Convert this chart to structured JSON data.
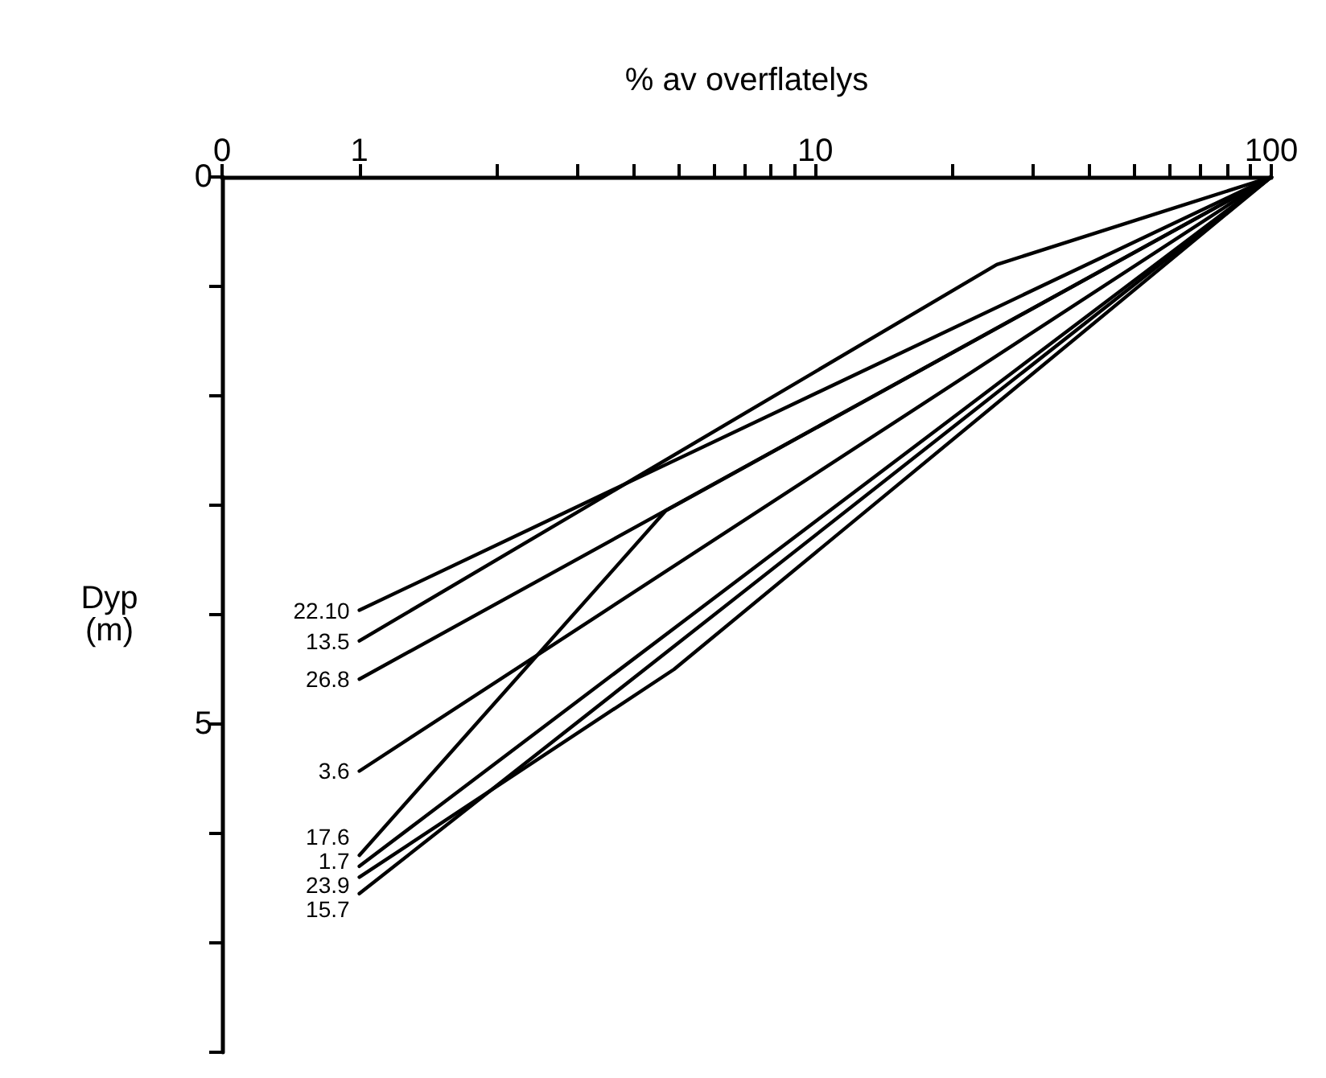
{
  "chart_data": {
    "type": "line",
    "xlabel": "% av overflatelys",
    "ylabel": "Dyp (m)",
    "log": "x",
    "xlim": [
      0.5,
      100
    ],
    "ylim": [
      8,
      0
    ],
    "xticks": [
      {
        "value": 0.5,
        "label": "0"
      },
      1,
      {
        "value": 2,
        "label": null
      },
      {
        "value": 3,
        "label": null
      },
      {
        "value": 4,
        "label": null
      },
      {
        "value": 5,
        "label": null
      },
      {
        "value": 6,
        "label": null
      },
      {
        "value": 7,
        "label": null
      },
      {
        "value": 8,
        "label": null
      },
      {
        "value": 9,
        "label": null
      },
      10,
      {
        "value": 20,
        "label": null
      },
      {
        "value": 30,
        "label": null
      },
      {
        "value": 40,
        "label": null
      },
      {
        "value": 50,
        "label": null
      },
      {
        "value": 60,
        "label": null
      },
      {
        "value": 70,
        "label": null
      },
      {
        "value": 80,
        "label": null
      },
      {
        "value": 90,
        "label": null
      },
      100
    ],
    "yticks": [
      0,
      {
        "value": 1,
        "label": null
      },
      {
        "value": 2,
        "label": null
      },
      {
        "value": 3,
        "label": null
      },
      {
        "value": 4,
        "label": null
      },
      5,
      {
        "value": 6,
        "label": null
      },
      {
        "value": 7,
        "label": null
      },
      {
        "value": 8,
        "label": null
      }
    ],
    "grid": false,
    "legend": false,
    "marker": "none",
    "line_style": "solid",
    "series": [
      {
        "name": "22.10",
        "color": "#000000",
        "x": [
          1,
          100
        ],
        "values": [
          3.96,
          0
        ]
      },
      {
        "name": "13.5",
        "color": "#000000",
        "x": [
          1,
          25,
          100
        ],
        "values": [
          4.24,
          0.8,
          0
        ]
      },
      {
        "name": "26.8",
        "color": "#000000",
        "x": [
          1,
          100
        ],
        "values": [
          4.59,
          0
        ]
      },
      {
        "name": "3.6",
        "color": "#000000",
        "x": [
          1,
          100
        ],
        "values": [
          5.43,
          0
        ]
      },
      {
        "name": "17.6",
        "color": "#000000",
        "x": [
          1,
          4.7,
          100
        ],
        "values": [
          6.2,
          3.05,
          0
        ]
      },
      {
        "name": "1.7",
        "color": "#000000",
        "x": [
          1,
          100
        ],
        "values": [
          6.3,
          0
        ]
      },
      {
        "name": "23.9",
        "color": "#000000",
        "x": [
          1,
          4.9,
          100
        ],
        "values": [
          6.4,
          4.5,
          0
        ]
      },
      {
        "name": "15.7",
        "color": "#000000",
        "x": [
          1,
          100
        ],
        "values": [
          6.55,
          0
        ]
      }
    ]
  }
}
